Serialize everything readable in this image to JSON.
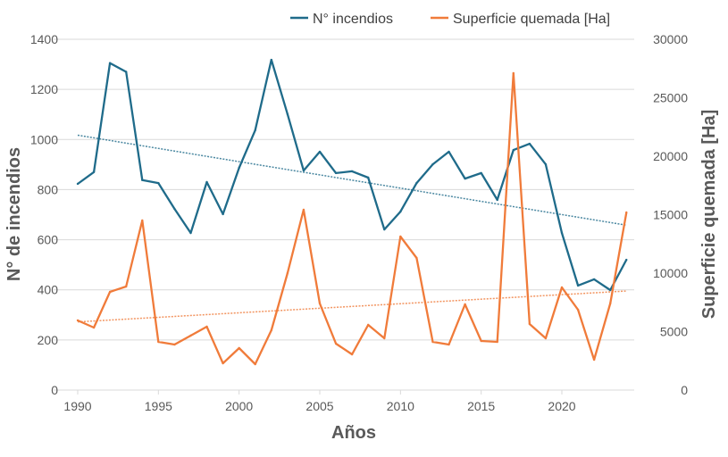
{
  "chart_data": {
    "type": "line",
    "xlabel": "Años",
    "ylabel_left": "N° de incendios",
    "ylabel_right": "Superficie quemada [Ha]",
    "ylim_left": [
      0,
      1400
    ],
    "ylim_right": [
      0,
      30000
    ],
    "xlim": [
      1990,
      2024
    ],
    "x_ticks": [
      1990,
      1995,
      2000,
      2005,
      2010,
      2015,
      2020
    ],
    "y_ticks_left": [
      0,
      200,
      400,
      600,
      800,
      1000,
      1200,
      1400
    ],
    "y_ticks_right": [
      0,
      5000,
      10000,
      15000,
      20000,
      25000,
      30000
    ],
    "grid": true,
    "legend_position": "top",
    "x": [
      1990,
      1991,
      1992,
      1993,
      1994,
      1995,
      1996,
      1997,
      1998,
      1999,
      2000,
      2001,
      2002,
      2003,
      2004,
      2005,
      2006,
      2007,
      2008,
      2009,
      2010,
      2011,
      2012,
      2013,
      2014,
      2015,
      2016,
      2017,
      2018,
      2019,
      2020,
      2021,
      2022,
      2023,
      2024
    ],
    "series": [
      {
        "name": "N° incendios",
        "axis": "left",
        "color": "#1F6B8A",
        "trendline": "linear",
        "values": [
          823,
          870,
          1305,
          1270,
          838,
          826,
          723,
          627,
          830,
          702,
          887,
          1037,
          1318,
          1101,
          876,
          951,
          866,
          873,
          848,
          641,
          712,
          826,
          901,
          951,
          844,
          866,
          759,
          958,
          983,
          901,
          627,
          417,
          442,
          399,
          520
        ]
      },
      {
        "name": "Superficie quemada [Ha]",
        "axis": "right",
        "color": "#F07B3A",
        "trendline": "linear",
        "values": [
          5955,
          5344,
          8397,
          8855,
          14504,
          4122,
          3893,
          4656,
          5420,
          2290,
          3588,
          2214,
          5115,
          10000,
          15420,
          7405,
          3970,
          3053,
          5573,
          4427,
          13130,
          11298,
          4122,
          3893,
          7328,
          4198,
          4122,
          27099,
          5649,
          4427,
          8779,
          6870,
          2595,
          7405,
          15191
        ]
      }
    ]
  }
}
